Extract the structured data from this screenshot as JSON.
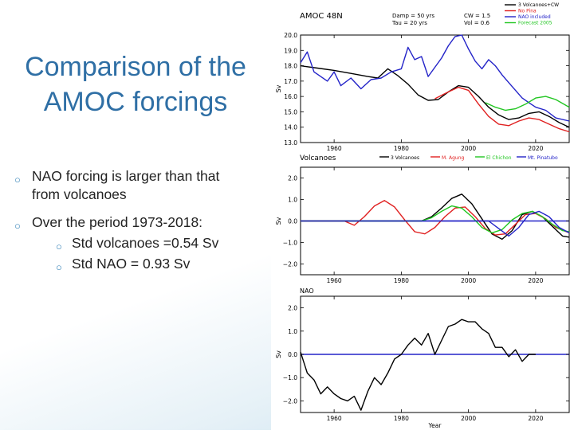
{
  "slide": {
    "title_line1": "Comparison of the",
    "title_line2": "AMOC forcings",
    "bullets": [
      {
        "line1": "NAO forcing is larger than that",
        "line2": "from volcanoes"
      },
      {
        "line1": "Over the period 1973-2018:"
      }
    ],
    "sub_bullets": [
      "Std volcanoes =0.54 Sv",
      "Std NAO = 0.93 Sv"
    ]
  },
  "colors": {
    "title": "#2f6fa5",
    "bullet_marker": "#2f7fb5",
    "black": "#000000",
    "red": "#e02020",
    "blue": "#2323c8",
    "green": "#21c621"
  },
  "chart_data": [
    {
      "type": "line",
      "title": "AMOC 48N",
      "params": [
        "Damp = 50 yrs",
        "Tau = 20 yrs",
        "CW = 1.5",
        "Vol = 0.6"
      ],
      "ylabel": "Sv",
      "xlim": [
        1950,
        2030
      ],
      "ylim": [
        13.0,
        20.0
      ],
      "xticks": [
        1960,
        1980,
        2000,
        2020
      ],
      "yticks": [
        "13.0",
        "14.0",
        "15.0",
        "16.0",
        "17.0",
        "18.0",
        "19.0",
        "20.0"
      ],
      "legend": [
        "3 Volcanoes+CW",
        "No Pina",
        "NAO included",
        "Forecast 2005"
      ],
      "series": [
        {
          "name": "3 Volcanoes+CW",
          "color": "#000000",
          "x": [
            1950,
            1955,
            1960,
            1965,
            1970,
            1973,
            1976,
            1979,
            1982,
            1985,
            1988,
            1991,
            1994,
            1997,
            2000,
            2003,
            2006,
            2009,
            2012,
            2015,
            2018,
            2021,
            2024,
            2027,
            2030
          ],
          "y": [
            18.0,
            17.85,
            17.7,
            17.5,
            17.3,
            17.2,
            17.8,
            17.35,
            16.8,
            16.1,
            15.75,
            15.8,
            16.3,
            16.7,
            16.6,
            16.0,
            15.3,
            14.8,
            14.5,
            14.6,
            14.9,
            15.0,
            14.7,
            14.3,
            14.0
          ]
        },
        {
          "name": "No Pina",
          "color": "#e02020",
          "x": [
            1990,
            1994,
            1997,
            2000,
            2003,
            2006,
            2009,
            2012,
            2015,
            2018,
            2021,
            2024,
            2027,
            2030
          ],
          "y": [
            15.85,
            16.3,
            16.6,
            16.4,
            15.5,
            14.7,
            14.2,
            14.1,
            14.4,
            14.6,
            14.5,
            14.2,
            13.9,
            13.7
          ]
        },
        {
          "name": "NAO included",
          "color": "#2323c8",
          "x": [
            1950,
            1952,
            1954,
            1956,
            1958,
            1960,
            1962,
            1965,
            1968,
            1971,
            1974,
            1977,
            1980,
            1982,
            1984,
            1986,
            1988,
            1990,
            1992,
            1994,
            1996,
            1998,
            2000,
            2002,
            2004,
            2006,
            2008,
            2010,
            2012,
            2014,
            2016,
            2018,
            2020,
            2023,
            2026,
            2030
          ],
          "y": [
            18.2,
            18.9,
            17.6,
            17.3,
            17.0,
            17.6,
            16.7,
            17.2,
            16.5,
            17.1,
            17.2,
            17.6,
            17.8,
            19.2,
            18.4,
            18.6,
            17.3,
            17.9,
            18.5,
            19.3,
            19.9,
            20.0,
            19.1,
            18.3,
            17.8,
            18.4,
            18.0,
            17.4,
            16.9,
            16.4,
            15.9,
            15.6,
            15.3,
            15.1,
            14.6,
            14.4
          ]
        },
        {
          "name": "Forecast 2005",
          "color": "#21c621",
          "x": [
            2005,
            2008,
            2011,
            2014,
            2017,
            2020,
            2023,
            2026,
            2030
          ],
          "y": [
            15.6,
            15.3,
            15.1,
            15.2,
            15.5,
            15.9,
            16.0,
            15.8,
            15.3
          ]
        }
      ]
    },
    {
      "type": "line",
      "title": "Volcanoes",
      "ylabel": "Sv",
      "xlim": [
        1950,
        2030
      ],
      "ylim": [
        -2.5,
        2.5
      ],
      "xticks": [
        1960,
        1980,
        2000,
        2020
      ],
      "yticks": [
        "2.0",
        "1.0",
        "0.0",
        "-1.0",
        "-2.0"
      ],
      "legend": [
        "3 Volcanoes",
        "M. Agung",
        "El Chichon",
        "Mt. Pinatubo"
      ],
      "series": [
        {
          "name": "3 Volcanoes",
          "color": "#000000",
          "x": [
            1950,
            1986,
            1989,
            1992,
            1995,
            1998,
            2001,
            2004,
            2007,
            2010,
            2013,
            2016,
            2019,
            2022,
            2025,
            2028,
            2030
          ],
          "y": [
            0,
            0,
            0.2,
            0.6,
            1.05,
            1.25,
            0.8,
            0.1,
            -0.6,
            -0.85,
            -0.45,
            0.3,
            0.45,
            0.2,
            -0.25,
            -0.7,
            -0.75
          ]
        },
        {
          "name": "M. Agung",
          "color": "#e02020",
          "x": [
            1950,
            1963,
            1966,
            1969,
            1972,
            1975,
            1978,
            1981,
            1984,
            1987,
            1990,
            1993,
            1996,
            1999,
            2002,
            2005,
            2008,
            2011,
            2014,
            2017,
            2020,
            2023,
            2026,
            2030
          ],
          "y": [
            0,
            0,
            -0.2,
            0.2,
            0.7,
            0.95,
            0.65,
            0.05,
            -0.5,
            -0.6,
            -0.3,
            0.2,
            0.6,
            0.65,
            0.2,
            -0.35,
            -0.65,
            -0.6,
            -0.15,
            0.3,
            0.35,
            0.1,
            -0.3,
            -0.55
          ]
        },
        {
          "name": "El Chichon",
          "color": "#21c621",
          "x": [
            1950,
            1986,
            1989,
            1992,
            1995,
            1998,
            2001,
            2004,
            2007,
            2010,
            2013,
            2016,
            2019,
            2022,
            2025,
            2028,
            2030
          ],
          "y": [
            0,
            0,
            0.15,
            0.45,
            0.7,
            0.6,
            0.2,
            -0.3,
            -0.55,
            -0.4,
            0.05,
            0.35,
            0.45,
            0.2,
            -0.15,
            -0.45,
            -0.5
          ]
        },
        {
          "name": "Mt. Pinatubo",
          "color": "#2323c8",
          "x": [
            1950,
            2006,
            2009,
            2012,
            2015,
            2018,
            2021,
            2024,
            2027,
            2030
          ],
          "y": [
            0,
            0,
            -0.35,
            -0.7,
            -0.3,
            0.3,
            0.45,
            0.2,
            -0.3,
            -0.55
          ]
        }
      ]
    },
    {
      "type": "line",
      "title": "NAO",
      "ylabel": "Sv",
      "xlabel": "Year",
      "xlim": [
        1950,
        2030
      ],
      "ylim": [
        -2.5,
        2.5
      ],
      "xticks": [
        1960,
        1980,
        2000,
        2020
      ],
      "yticks": [
        "2.0",
        "1.0",
        "0.0",
        "-1.0",
        "-2.0"
      ],
      "series": [
        {
          "name": "NAO",
          "color": "#000000",
          "x": [
            1950,
            1952,
            1954,
            1956,
            1958,
            1960,
            1962,
            1964,
            1966,
            1968,
            1970,
            1972,
            1974,
            1976,
            1978,
            1980,
            1982,
            1984,
            1986,
            1988,
            1990,
            1992,
            1994,
            1996,
            1998,
            2000,
            2002,
            2004,
            2006,
            2008,
            2010,
            2012,
            2014,
            2016,
            2018,
            2020
          ],
          "y": [
            0.1,
            -0.8,
            -1.1,
            -1.7,
            -1.4,
            -1.7,
            -1.9,
            -2.0,
            -1.8,
            -2.4,
            -1.6,
            -1.0,
            -1.3,
            -0.8,
            -0.2,
            0.0,
            0.4,
            0.7,
            0.4,
            0.9,
            0.0,
            0.6,
            1.2,
            1.3,
            1.5,
            1.4,
            1.4,
            1.1,
            0.9,
            0.3,
            0.3,
            -0.1,
            0.2,
            -0.3,
            0.0,
            0.0
          ]
        }
      ]
    }
  ]
}
